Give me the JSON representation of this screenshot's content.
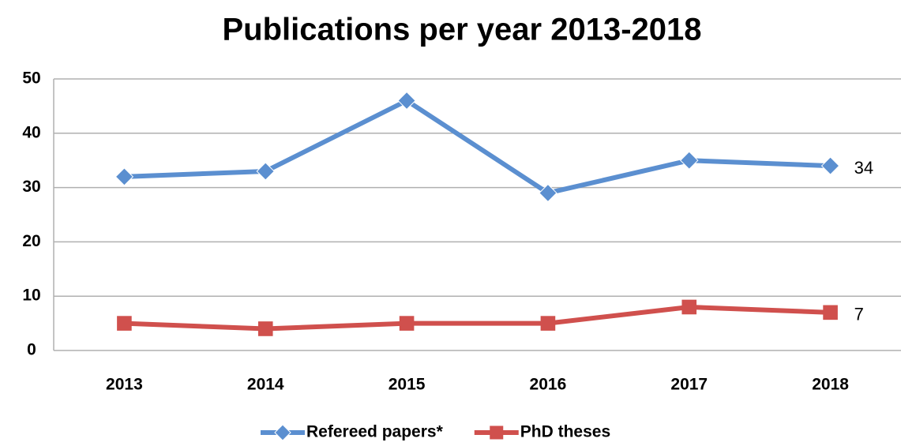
{
  "chart_data": {
    "type": "line",
    "title": "Publications per year 2013-2018",
    "categories": [
      "2013",
      "2014",
      "2015",
      "2016",
      "2017",
      "2018"
    ],
    "series": [
      {
        "name": "Refereed papers*",
        "color": "#5b8fd0",
        "marker": "diamond",
        "values": [
          32,
          33,
          46,
          29,
          35,
          34
        ]
      },
      {
        "name": "PhD theses",
        "color": "#d0504d",
        "marker": "square",
        "values": [
          5,
          4,
          5,
          5,
          8,
          7
        ]
      }
    ],
    "ylim": [
      0,
      50
    ],
    "yticks": [
      0,
      10,
      20,
      30,
      40,
      50
    ],
    "grid": true,
    "data_labels": "last",
    "legend": "bottom"
  }
}
